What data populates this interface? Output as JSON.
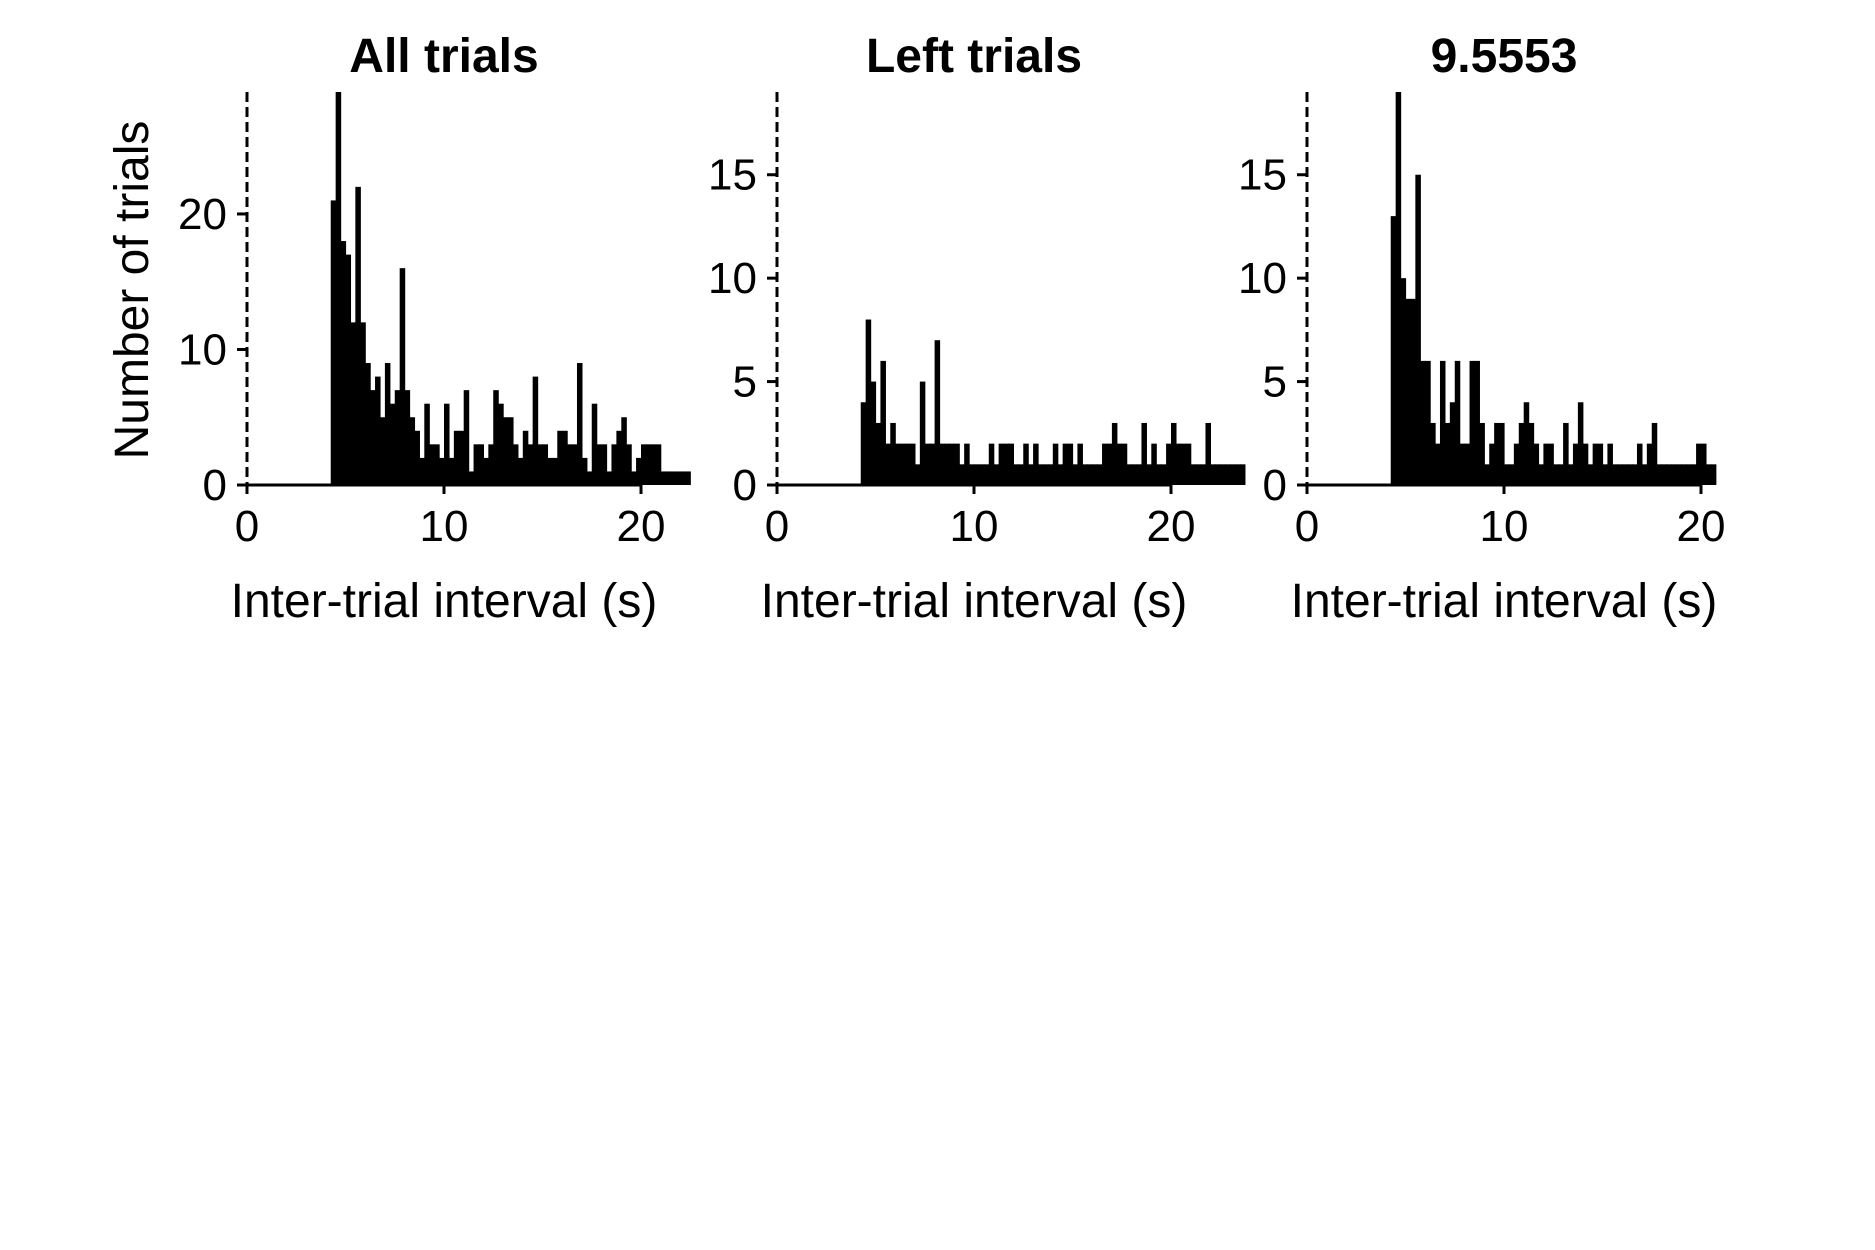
{
  "chart_data": [
    {
      "type": "bar",
      "title": "All trials",
      "xlabel": "Inter-trial interval (s)",
      "ylabel": "Number of trials",
      "xlim": [
        0,
        20
      ],
      "ylim": [
        0,
        29
      ],
      "xticks": [
        0,
        10,
        20
      ],
      "yticks": [
        0,
        10,
        20
      ],
      "bin_width": 0.25,
      "bin_start": 4.25,
      "values": [
        21,
        29,
        18,
        17,
        12,
        22,
        12,
        9,
        7,
        8,
        5,
        9,
        6,
        7,
        16,
        7,
        5,
        4,
        2,
        6,
        3,
        3,
        2,
        6,
        2,
        4,
        4,
        7,
        1,
        3,
        3,
        2,
        3,
        7,
        6,
        5,
        5,
        3,
        2,
        4,
        3,
        8,
        3,
        3,
        2,
        2,
        4,
        4,
        3,
        3,
        9,
        2,
        1,
        6,
        3,
        3,
        1,
        3,
        4,
        5,
        3,
        1,
        2,
        3,
        3,
        3,
        3,
        1,
        1,
        1,
        1,
        1,
        1
      ],
      "marker_x": 0,
      "marker_style": "dashed"
    },
    {
      "type": "bar",
      "title": "Left trials",
      "xlabel": "Inter-trial interval (s)",
      "ylabel": "",
      "xlim": [
        0,
        20
      ],
      "ylim": [
        0,
        19
      ],
      "xticks": [
        0,
        10,
        20
      ],
      "yticks": [
        0,
        5,
        10,
        15
      ],
      "bin_width": 0.25,
      "bin_start": 4.25,
      "values": [
        4,
        8,
        5,
        3,
        6,
        2,
        3,
        2,
        2,
        2,
        2,
        1,
        5,
        2,
        2,
        7,
        2,
        2,
        2,
        2,
        1,
        2,
        1,
        1,
        1,
        1,
        2,
        1,
        2,
        2,
        2,
        1,
        1,
        2,
        1,
        2,
        1,
        1,
        1,
        2,
        1,
        2,
        2,
        1,
        2,
        1,
        1,
        1,
        1,
        2,
        2,
        3,
        2,
        2,
        1,
        1,
        1,
        3,
        1,
        2,
        1,
        1,
        2,
        3,
        2,
        2,
        2,
        1,
        1,
        1,
        3,
        1,
        1,
        1,
        1,
        1,
        1,
        1
      ],
      "marker_x": 0,
      "marker_style": "dashed"
    },
    {
      "type": "bar",
      "title": "9.5553",
      "xlabel": "Inter-trial interval (s)",
      "ylabel": "",
      "xlim": [
        0,
        20
      ],
      "ylim": [
        0,
        19
      ],
      "xticks": [
        0,
        10,
        20
      ],
      "yticks": [
        0,
        5,
        10,
        15
      ],
      "bin_width": 0.25,
      "bin_start": 4.25,
      "values": [
        13,
        19,
        10,
        9,
        9,
        15,
        6,
        6,
        3,
        2,
        6,
        3,
        4,
        6,
        2,
        2,
        6,
        6,
        3,
        1,
        2,
        3,
        3,
        1,
        1,
        2,
        3,
        4,
        3,
        2,
        1,
        2,
        2,
        1,
        1,
        3,
        1,
        2,
        4,
        2,
        1,
        2,
        2,
        1,
        2,
        1,
        1,
        1,
        1,
        1,
        2,
        1,
        2,
        3,
        1,
        1,
        1,
        1,
        1,
        1,
        1,
        1,
        2,
        2,
        1,
        1
      ],
      "marker_x": 0,
      "marker_style": "dashed"
    }
  ]
}
